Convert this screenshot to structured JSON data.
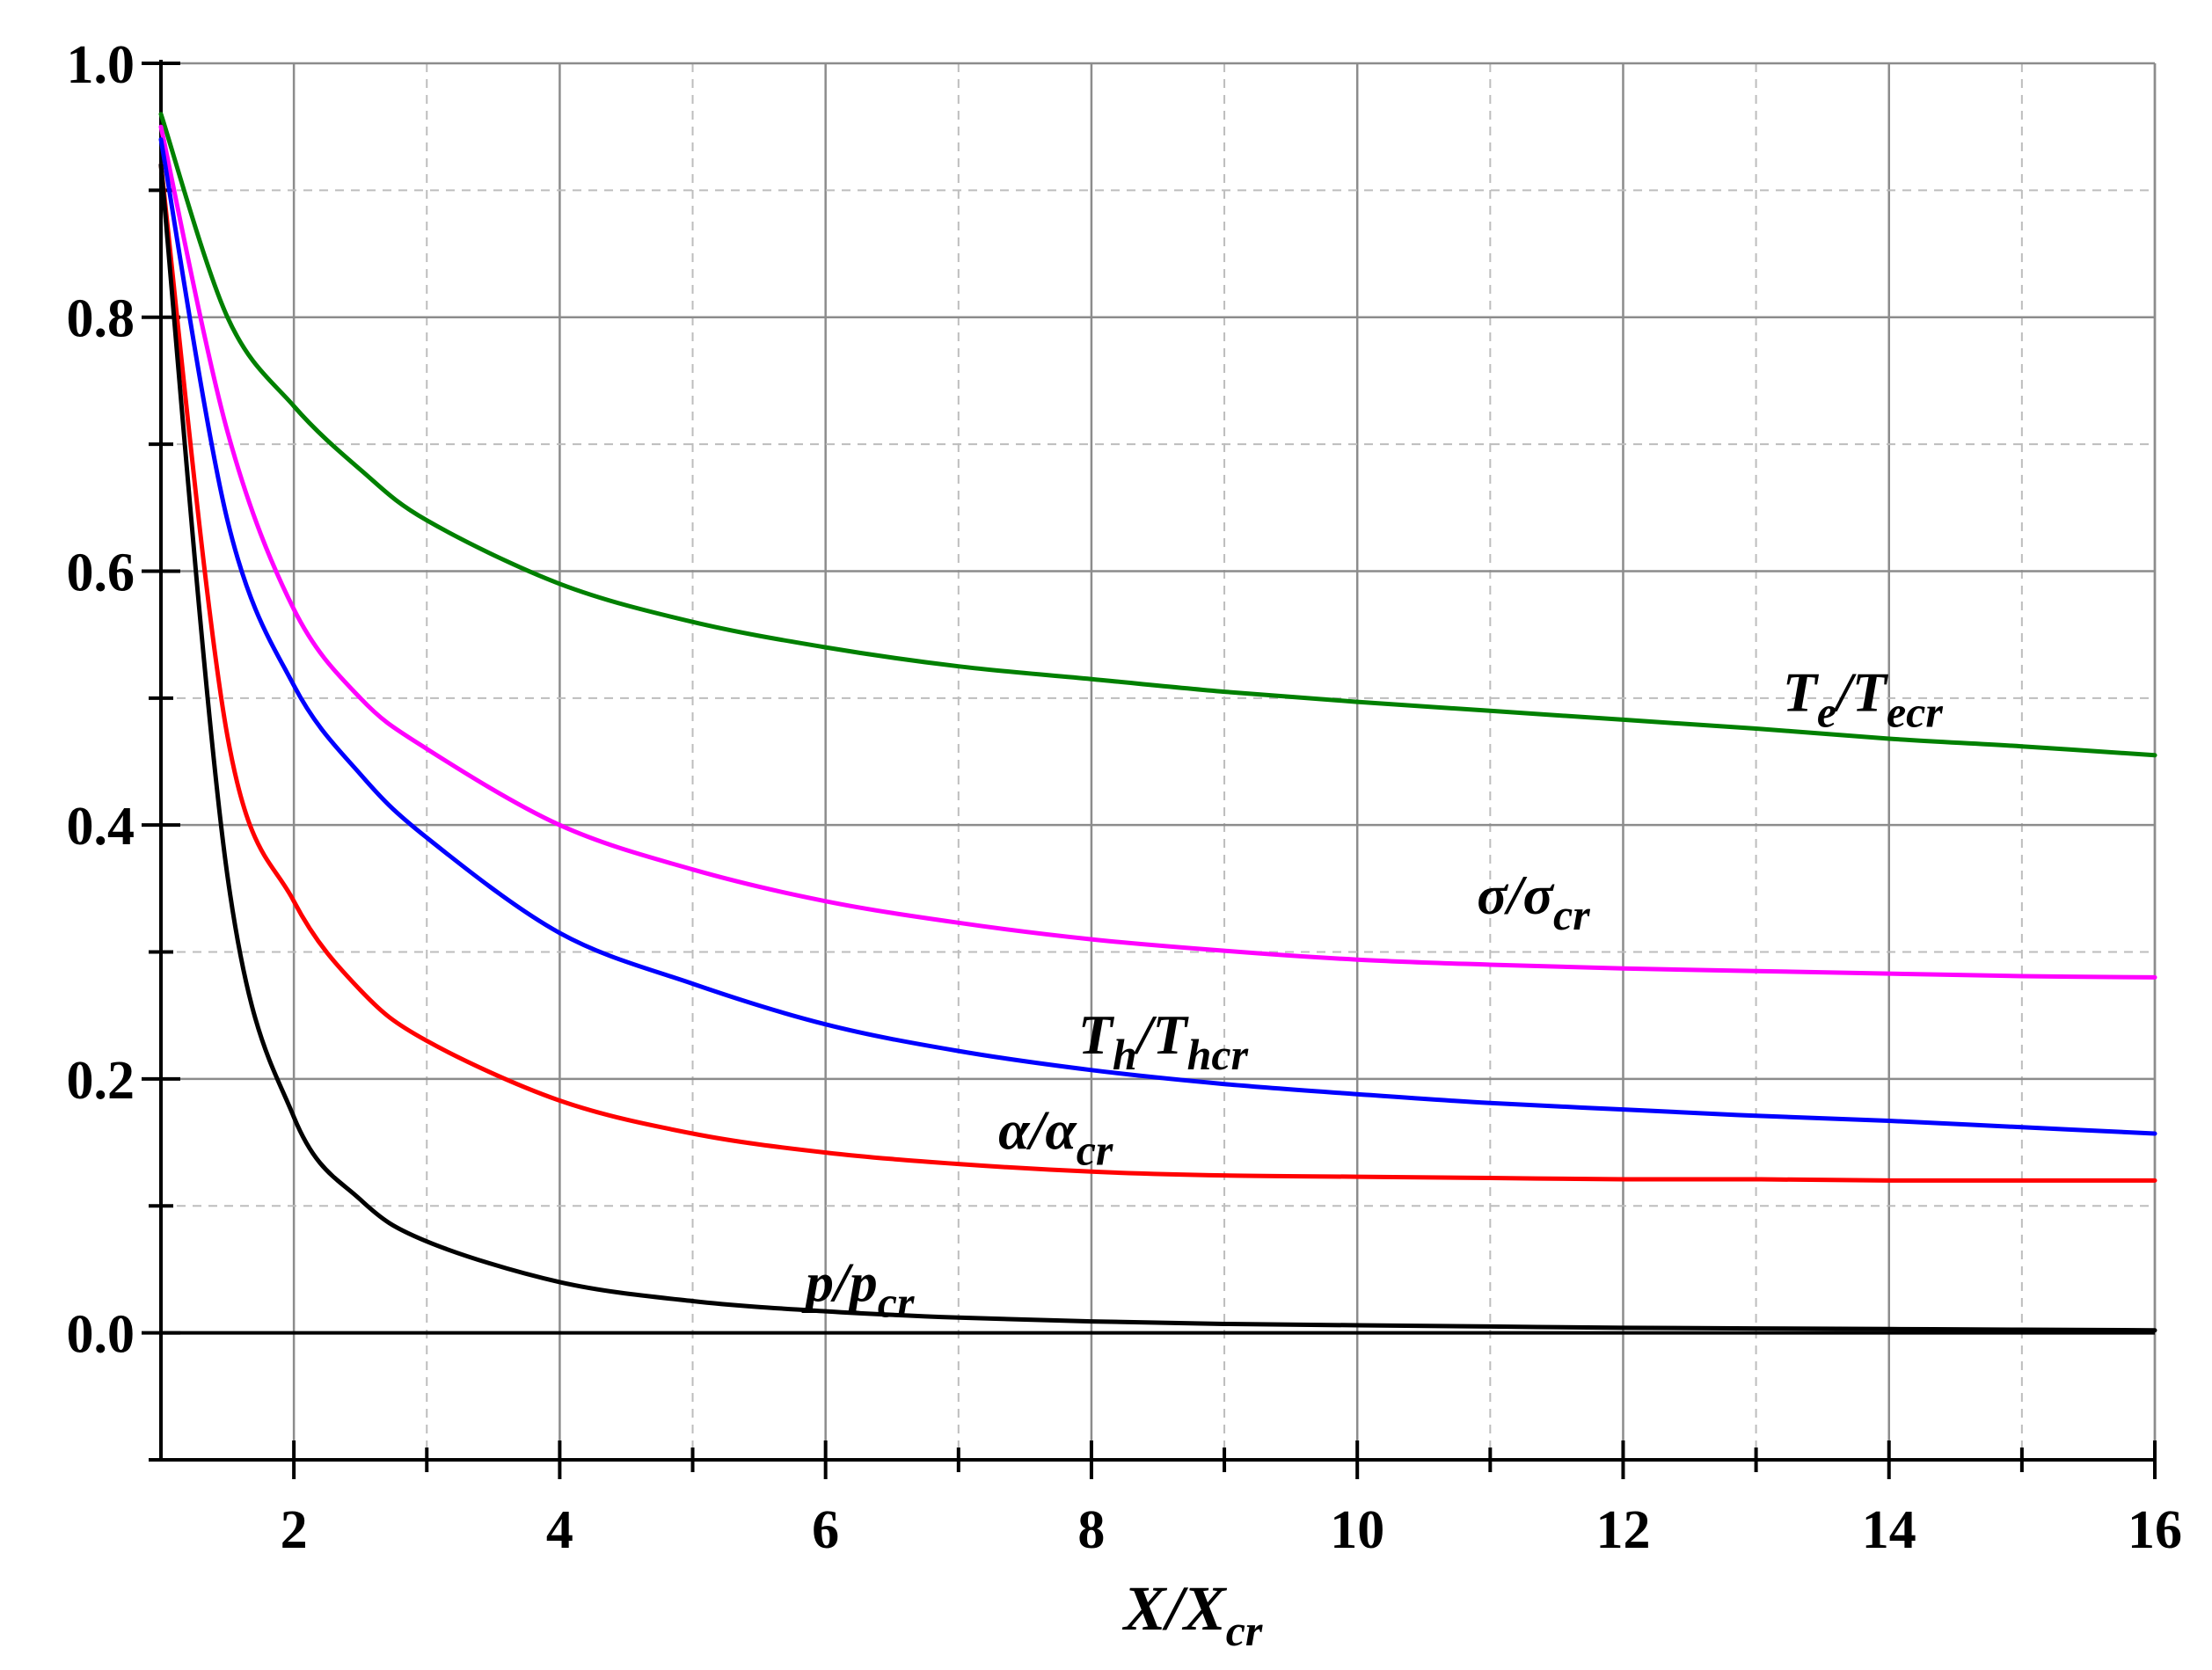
{
  "chart_data": {
    "type": "line",
    "title": "",
    "xlabel": "X/X",
    "xlabel_sub": "cr",
    "ylabel": "",
    "xlim": [
      1,
      16
    ],
    "ylim": [
      -0.1,
      1.0
    ],
    "grid": true,
    "x_ticks": [
      2,
      4,
      6,
      8,
      10,
      12,
      14,
      16
    ],
    "x_tick_labels": [
      "2",
      "4",
      "6",
      "8",
      "10",
      "12",
      "14",
      "16"
    ],
    "y_ticks": [
      0.0,
      0.2,
      0.4,
      0.6,
      0.8,
      1.0
    ],
    "y_tick_labels": [
      "0.0",
      "0.2",
      "0.4",
      "0.6",
      "0.8",
      "1.0"
    ],
    "x": [
      1,
      1.5,
      2,
      2.5,
      3,
      4,
      5,
      6,
      7,
      8,
      9,
      10,
      11,
      12,
      13,
      14,
      15,
      16
    ],
    "series": [
      {
        "name": "Te/Tecr",
        "label_main": "T",
        "label_sub1": "e",
        "label_mid": "/T",
        "label_sub2": "ecr",
        "label_at": [
          13.2,
          0.49
        ],
        "color": "#008000",
        "values": [
          0.96,
          0.8,
          0.73,
          0.68,
          0.64,
          0.59,
          0.56,
          0.54,
          0.525,
          0.515,
          0.505,
          0.497,
          0.49,
          0.483,
          0.476,
          0.468,
          0.462,
          0.455
        ]
      },
      {
        "name": "σ/σcr",
        "label_main": "σ/σ",
        "label_sub1": "",
        "label_mid": "",
        "label_sub2": "cr",
        "label_at": [
          10.9,
          0.33
        ],
        "color": "#ff00ff",
        "values": [
          0.95,
          0.71,
          0.57,
          0.5,
          0.46,
          0.4,
          0.365,
          0.34,
          0.323,
          0.31,
          0.301,
          0.294,
          0.29,
          0.287,
          0.285,
          0.283,
          0.281,
          0.28
        ]
      },
      {
        "name": "Th/Thcr",
        "label_main": "T",
        "label_sub1": "h",
        "label_mid": "/T",
        "label_sub2": "hcr",
        "label_at": [
          7.9,
          0.22
        ],
        "color": "#0000ff",
        "values": [
          0.94,
          0.64,
          0.51,
          0.44,
          0.39,
          0.315,
          0.275,
          0.243,
          0.222,
          0.207,
          0.196,
          0.188,
          0.181,
          0.176,
          0.171,
          0.167,
          0.162,
          0.157
        ]
      },
      {
        "name": "α/αcr",
        "label_main": "α/α",
        "label_sub1": "",
        "label_mid": "",
        "label_sub2": "cr",
        "label_at": [
          7.3,
          0.145
        ],
        "color": "#ff0000",
        "values": [
          0.92,
          0.47,
          0.34,
          0.27,
          0.23,
          0.183,
          0.157,
          0.142,
          0.133,
          0.127,
          0.124,
          0.123,
          0.122,
          0.121,
          0.121,
          0.12,
          0.12,
          0.12
        ]
      },
      {
        "name": "p/pcr",
        "label_main": "p/p",
        "label_sub1": "",
        "label_mid": "",
        "label_sub2": "cr",
        "label_at": [
          5.85,
          0.025
        ],
        "color": "#000000",
        "values": [
          0.92,
          0.36,
          0.17,
          0.105,
          0.072,
          0.04,
          0.025,
          0.017,
          0.012,
          0.009,
          0.007,
          0.006,
          0.005,
          0.004,
          0.0035,
          0.003,
          0.0025,
          0.002
        ]
      }
    ]
  }
}
